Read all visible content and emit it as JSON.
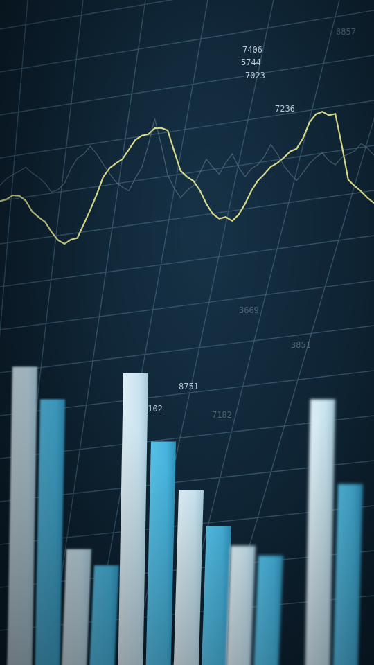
{
  "chart_data": {
    "type": "bar",
    "xlabel": "",
    "ylabel": "",
    "bar_series": [
      {
        "name": "",
        "color": "#c9e3ee",
        "values": [
          0.98,
          0.42,
          0.96,
          0.6,
          0.43,
          0.88
        ]
      },
      {
        "name": "",
        "color": "#47b3dc",
        "values": [
          0.88,
          0.37,
          0.75,
          0.49,
          0.4,
          0.62
        ]
      }
    ],
    "line_series": [
      {
        "name": "",
        "color": "#d7d98a",
        "style": "solid",
        "values": [
          0.52,
          0.55,
          0.51,
          0.4,
          0.3,
          0.22,
          0.25,
          0.42,
          0.62,
          0.7,
          0.78,
          0.86,
          0.9,
          0.88,
          0.62,
          0.55,
          0.4,
          0.3,
          0.28,
          0.38,
          0.52,
          0.6,
          0.65,
          0.7,
          0.86,
          0.92,
          0.9,
          0.48,
          0.4,
          0.32
        ]
      },
      {
        "name": "",
        "color": "#6d8596",
        "style": "ghost",
        "values": [
          0.62,
          0.68,
          0.72,
          0.65,
          0.55,
          0.6,
          0.75,
          0.82,
          0.7,
          0.58,
          0.52,
          0.66,
          0.96,
          0.6,
          0.45,
          0.52,
          0.68,
          0.58,
          0.7,
          0.55,
          0.62,
          0.74,
          0.6,
          0.5,
          0.6,
          0.66,
          0.58,
          0.64,
          0.7,
          0.62
        ]
      }
    ],
    "value_labels": [
      "7406",
      "5744",
      "7023",
      "7236",
      "8751",
      "7102",
      "7182",
      "3669",
      "8857",
      "3851"
    ]
  },
  "colors": {
    "background": "#0f2535",
    "grid": "#3f6178",
    "bar_light": "#c9e3ee",
    "bar_blue": "#47b3dc",
    "line_yellow": "#d7d98a"
  }
}
